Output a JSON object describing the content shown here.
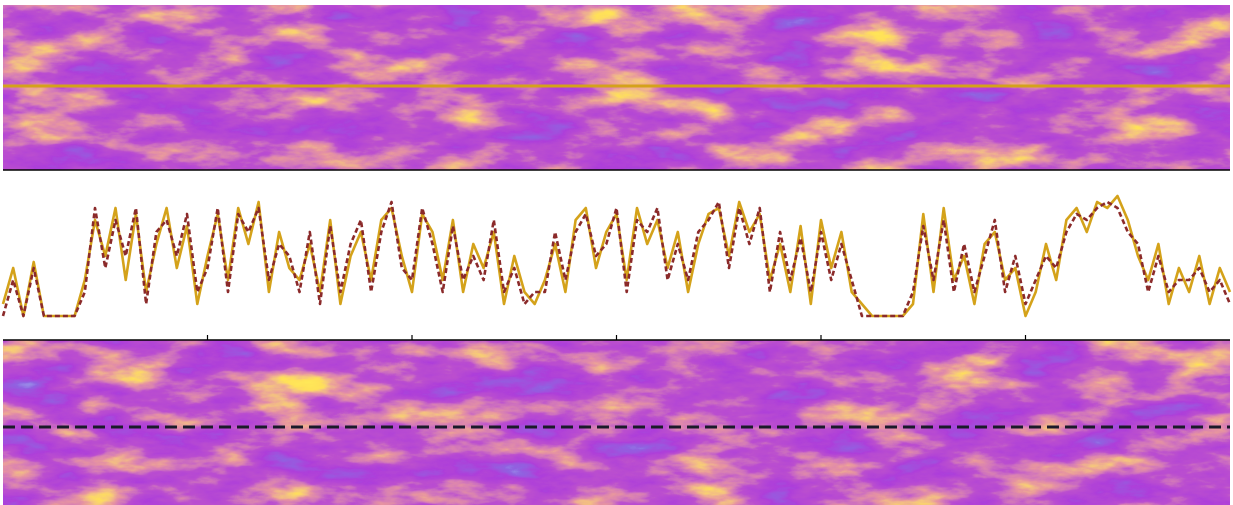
{
  "chart_data": {
    "type": "line",
    "x": [
      0,
      0.05,
      0.1,
      0.15,
      0.2,
      0.25,
      0.3,
      0.35,
      0.4,
      0.45,
      0.5,
      0.55,
      0.6,
      0.65,
      0.7,
      0.75,
      0.8,
      0.85,
      0.9,
      0.95,
      1,
      1.05,
      1.1,
      1.15,
      1.2,
      1.25,
      1.3,
      1.35,
      1.4,
      1.45,
      1.5,
      1.55,
      1.6,
      1.65,
      1.7,
      1.75,
      1.8,
      1.85,
      1.9,
      1.95,
      2,
      2.05,
      2.1,
      2.15,
      2.2,
      2.25,
      2.3,
      2.35,
      2.4,
      2.45,
      2.5,
      2.55,
      2.6,
      2.65,
      2.7,
      2.75,
      2.8,
      2.85,
      2.9,
      2.95,
      3,
      3.05,
      3.1,
      3.15,
      3.2,
      3.25,
      3.3,
      3.35,
      3.4,
      3.45,
      3.5,
      3.55,
      3.6,
      3.65,
      3.7,
      3.75,
      3.8,
      3.85,
      3.9,
      3.95,
      4,
      4.05,
      4.1,
      4.15,
      4.2,
      4.25,
      4.3,
      4.35,
      4.4,
      4.45,
      4.5,
      4.55,
      4.6,
      4.65,
      4.7,
      4.75,
      4.8,
      4.85,
      4.9,
      4.95,
      5,
      5.05,
      5.1,
      5.15,
      5.2,
      5.25,
      5.3,
      5.35,
      5.4,
      5.45,
      5.5,
      5.55,
      5.6,
      5.65,
      5.7,
      5.75,
      5.8,
      5.85,
      5.9,
      5.95,
      6
    ],
    "series": [
      {
        "color": "#d4a21a",
        "linestyle": "solid",
        "values": [
          0.1,
          0.4,
          0,
          0.45,
          0,
          0,
          0,
          0,
          0.3,
          0.8,
          0.5,
          0.9,
          0.3,
          0.85,
          0.2,
          0.6,
          0.9,
          0.4,
          0.75,
          0.1,
          0.5,
          0.85,
          0.3,
          0.9,
          0.6,
          0.95,
          0.2,
          0.7,
          0.4,
          0.3,
          0.6,
          0.2,
          0.8,
          0.1,
          0.5,
          0.7,
          0.3,
          0.8,
          0.9,
          0.5,
          0.2,
          0.85,
          0.7,
          0.3,
          0.8,
          0.2,
          0.6,
          0.4,
          0.7,
          0.1,
          0.5,
          0.2,
          0.1,
          0.3,
          0.6,
          0.2,
          0.8,
          0.9,
          0.4,
          0.7,
          0.85,
          0.3,
          0.9,
          0.6,
          0.8,
          0.4,
          0.7,
          0.2,
          0.6,
          0.85,
          0.9,
          0.5,
          0.95,
          0.7,
          0.85,
          0.3,
          0.6,
          0.2,
          0.75,
          0.1,
          0.8,
          0.4,
          0.7,
          0.2,
          0.1,
          0,
          0,
          0,
          0,
          0.1,
          0.85,
          0.2,
          0.9,
          0.3,
          0.5,
          0.1,
          0.6,
          0.7,
          0.3,
          0.4,
          0,
          0.2,
          0.6,
          0.3,
          0.8,
          0.9,
          0.7,
          0.95,
          0.9,
          1.0,
          0.8,
          0.5,
          0.3,
          0.6,
          0.1,
          0.4,
          0.2,
          0.5,
          0.1,
          0.4,
          0.2
        ]
      },
      {
        "color": "#8b2a2a",
        "linestyle": "dashed",
        "values": [
          0,
          0.3,
          0,
          0.4,
          0,
          0,
          0,
          0,
          0.2,
          0.9,
          0.4,
          0.8,
          0.5,
          0.9,
          0.1,
          0.7,
          0.8,
          0.5,
          0.85,
          0.2,
          0.4,
          0.9,
          0.2,
          0.85,
          0.7,
          0.9,
          0.3,
          0.6,
          0.5,
          0.2,
          0.7,
          0.1,
          0.75,
          0.2,
          0.6,
          0.8,
          0.2,
          0.7,
          0.95,
          0.4,
          0.3,
          0.9,
          0.6,
          0.2,
          0.75,
          0.3,
          0.5,
          0.3,
          0.8,
          0.2,
          0.4,
          0.1,
          0.2,
          0.2,
          0.7,
          0.3,
          0.7,
          0.85,
          0.5,
          0.6,
          0.9,
          0.2,
          0.8,
          0.7,
          0.9,
          0.3,
          0.6,
          0.3,
          0.7,
          0.8,
          0.95,
          0.4,
          0.9,
          0.6,
          0.9,
          0.2,
          0.7,
          0.3,
          0.65,
          0.2,
          0.7,
          0.3,
          0.6,
          0.3,
          0,
          0,
          0,
          0,
          0,
          0.2,
          0.75,
          0.3,
          0.8,
          0.2,
          0.6,
          0.2,
          0.5,
          0.8,
          0.2,
          0.5,
          0.1,
          0.3,
          0.5,
          0.4,
          0.7,
          0.85,
          0.8,
          0.9,
          0.95,
          0.9,
          0.7,
          0.6,
          0.2,
          0.5,
          0.2,
          0.3,
          0.3,
          0.4,
          0.2,
          0.3,
          0.1
        ]
      }
    ],
    "xlim": [
      0,
      6
    ],
    "ylim": [
      -0.2,
      1.05
    ],
    "xticks": [
      1,
      2,
      3,
      4,
      5
    ],
    "grid": false
  }
}
